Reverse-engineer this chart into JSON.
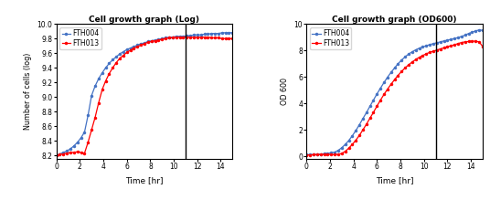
{
  "title_log": "Cell growth graph (Log)",
  "title_od": "Cell growth graph (OD600)",
  "ylabel_log": "Number of cells (log)",
  "ylabel_od": "OD 600",
  "xlabel": "Time [hr]",
  "vline_x": 11,
  "ylim_log": [
    8.15,
    10.0
  ],
  "ylim_od": [
    -0.2,
    10
  ],
  "xlim": [
    0,
    15
  ],
  "xticks": [
    0,
    2,
    4,
    6,
    8,
    10,
    12,
    14
  ],
  "yticks_log": [
    8.2,
    8.4,
    8.6,
    8.8,
    9.0,
    9.2,
    9.4,
    9.6,
    9.8,
    10.0
  ],
  "yticks_od": [
    0,
    2,
    4,
    6,
    8,
    10
  ],
  "color_fth004": "#4472C4",
  "color_fth013": "#FF0000",
  "legend_fth004": "FTH004",
  "legend_fth013": "FTH013",
  "time": [
    0.0,
    0.3,
    0.6,
    0.9,
    1.2,
    1.5,
    1.8,
    2.1,
    2.4,
    2.7,
    3.0,
    3.3,
    3.6,
    3.9,
    4.2,
    4.5,
    4.8,
    5.1,
    5.4,
    5.7,
    6.0,
    6.3,
    6.6,
    6.9,
    7.2,
    7.5,
    7.8,
    8.1,
    8.4,
    8.7,
    9.0,
    9.3,
    9.6,
    9.9,
    10.2,
    10.5,
    10.8,
    11.1,
    11.4,
    11.7,
    12.0,
    12.3,
    12.6,
    12.9,
    13.2,
    13.5,
    13.8,
    14.1,
    14.4,
    14.7,
    15.0
  ],
  "val_log_fth004": [
    8.2,
    8.22,
    8.24,
    8.26,
    8.29,
    8.33,
    8.38,
    8.44,
    8.52,
    8.75,
    9.02,
    9.15,
    9.25,
    9.33,
    9.4,
    9.46,
    9.51,
    9.55,
    9.59,
    9.62,
    9.65,
    9.67,
    9.69,
    9.71,
    9.73,
    9.74,
    9.76,
    9.77,
    9.78,
    9.79,
    9.8,
    9.81,
    9.82,
    9.82,
    9.83,
    9.83,
    9.83,
    9.84,
    9.84,
    9.85,
    9.85,
    9.85,
    9.86,
    9.86,
    9.87,
    9.87,
    9.87,
    9.88,
    9.88,
    9.88,
    9.88
  ],
  "val_log_fth013": [
    8.2,
    8.21,
    8.22,
    8.23,
    8.24,
    8.24,
    8.25,
    8.24,
    8.23,
    8.38,
    8.55,
    8.72,
    8.92,
    9.1,
    9.22,
    9.32,
    9.4,
    9.47,
    9.53,
    9.57,
    9.61,
    9.64,
    9.67,
    9.69,
    9.71,
    9.73,
    9.75,
    9.76,
    9.77,
    9.78,
    9.79,
    9.8,
    9.81,
    9.81,
    9.82,
    9.82,
    9.82,
    9.82,
    9.82,
    9.82,
    9.82,
    9.82,
    9.82,
    9.82,
    9.81,
    9.81,
    9.81,
    9.8,
    9.8,
    9.8,
    9.8
  ],
  "val_od_fth004": [
    0.12,
    0.13,
    0.14,
    0.15,
    0.17,
    0.2,
    0.23,
    0.27,
    0.32,
    0.45,
    0.65,
    0.9,
    1.2,
    1.55,
    1.95,
    2.38,
    2.85,
    3.3,
    3.78,
    4.25,
    4.72,
    5.15,
    5.58,
    5.98,
    6.35,
    6.68,
    7.0,
    7.28,
    7.52,
    7.73,
    7.9,
    8.05,
    8.17,
    8.27,
    8.36,
    8.44,
    8.52,
    8.58,
    8.65,
    8.72,
    8.78,
    8.84,
    8.9,
    8.98,
    9.06,
    9.16,
    9.28,
    9.38,
    9.48,
    9.55,
    9.52
  ],
  "val_od_fth013": [
    0.1,
    0.11,
    0.12,
    0.13,
    0.14,
    0.15,
    0.15,
    0.14,
    0.13,
    0.15,
    0.22,
    0.38,
    0.62,
    0.9,
    1.22,
    1.58,
    2.0,
    2.42,
    2.88,
    3.32,
    3.8,
    4.25,
    4.68,
    5.08,
    5.45,
    5.8,
    6.12,
    6.42,
    6.68,
    6.92,
    7.13,
    7.32,
    7.48,
    7.62,
    7.75,
    7.86,
    7.95,
    8.03,
    8.12,
    8.2,
    8.28,
    8.36,
    8.43,
    8.52,
    8.6,
    8.65,
    8.68,
    8.7,
    8.7,
    8.65,
    8.3
  ],
  "marker_size": 2.5,
  "line_width": 0.9
}
